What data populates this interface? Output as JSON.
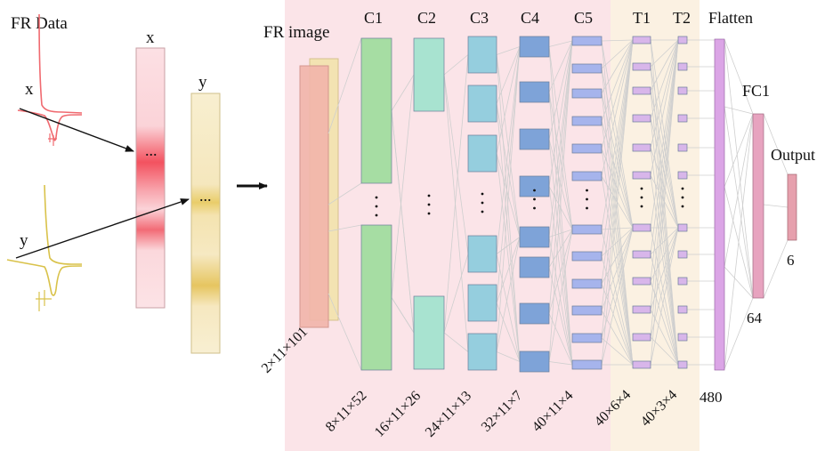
{
  "input_panel": {
    "title": "FR Data",
    "signal_x_label": "x",
    "signal_y_label": "y",
    "vector_x_label": "x",
    "vector_y_label": "y",
    "ellipsis": "..."
  },
  "network": {
    "input_label": "FR image",
    "input_dims": "2×11×101",
    "layers": [
      {
        "name": "C1",
        "dims": "8×11×52"
      },
      {
        "name": "C2",
        "dims": "16×11×26"
      },
      {
        "name": "C3",
        "dims": "24×11×13"
      },
      {
        "name": "C4",
        "dims": "32×11×7"
      },
      {
        "name": "C5",
        "dims": "40×11×4"
      },
      {
        "name": "T1",
        "dims": "40×6×4"
      },
      {
        "name": "T2",
        "dims": "40×3×4"
      }
    ],
    "flatten": {
      "name": "Flatten",
      "size": "480"
    },
    "fc1": {
      "name": "FC1",
      "size": "64"
    },
    "output": {
      "name": "Output",
      "size": "6"
    }
  },
  "colors": {
    "conv_region": "#fbe4e8",
    "transformer_region": "#fbf1e2",
    "signal_x": "#f06a70",
    "signal_y": "#d9c24a",
    "input_image": "#f2b5ab",
    "input_image_back": "#f3e3b0",
    "c1": "#a6dda3",
    "c2": "#a8e3d0",
    "c3": "#95cede",
    "c4": "#7ea3d8",
    "c5": "#a6b4ec",
    "t_cells": "#d8b6ea",
    "flatten": "#dba5e6",
    "fc1": "#e7a3bf",
    "output": "#e6a0ad"
  }
}
